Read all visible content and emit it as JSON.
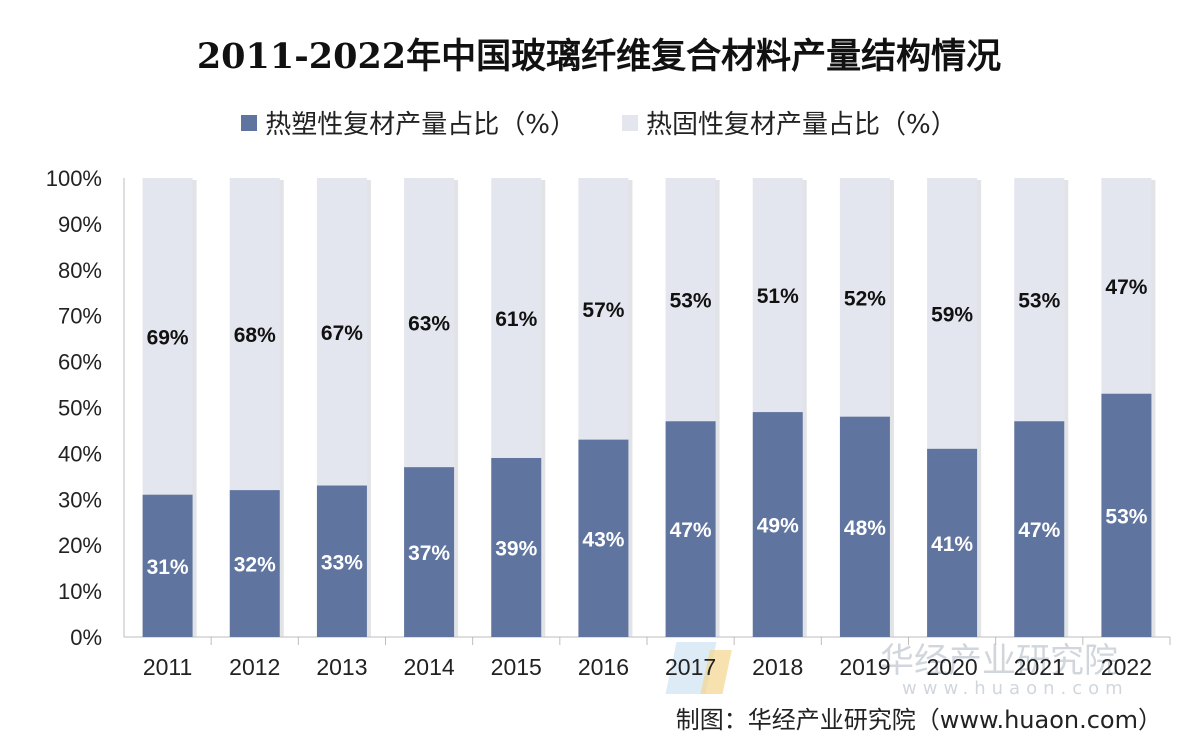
{
  "title": "2011-2022年中国玻璃纤维复合材料产量结构情况",
  "source": "制图：华经产业研究院（www.huaon.com）",
  "watermark": {
    "text": "华经产业研究院",
    "url": "www.huaon.com"
  },
  "colors": {
    "thermoplastic": "#5f749f",
    "thermoset": "#e3e6ee",
    "axis": "#bdbdbd"
  },
  "chart_data": {
    "type": "bar",
    "stacked": true,
    "categories": [
      "2011",
      "2012",
      "2013",
      "2014",
      "2015",
      "2016",
      "2017",
      "2018",
      "2019",
      "2020",
      "2021",
      "2022"
    ],
    "series": [
      {
        "name": "热塑性复材产量占比（%）",
        "values": [
          31,
          32,
          33,
          37,
          39,
          43,
          47,
          49,
          48,
          41,
          47,
          53
        ],
        "labels": [
          "31%",
          "32%",
          "33%",
          "37%",
          "39%",
          "43%",
          "47%",
          "49%",
          "48%",
          "41%",
          "47%",
          "53%"
        ]
      },
      {
        "name": "热固性复材产量占比（%）",
        "values": [
          69,
          68,
          67,
          63,
          61,
          57,
          53,
          51,
          52,
          59,
          53,
          47
        ],
        "labels": [
          "69%",
          "68%",
          "67%",
          "63%",
          "61%",
          "57%",
          "53%",
          "51%",
          "52%",
          "59%",
          "53%",
          "47%"
        ]
      }
    ],
    "yticks": [
      "0%",
      "10%",
      "20%",
      "30%",
      "40%",
      "50%",
      "60%",
      "70%",
      "80%",
      "90%",
      "100%"
    ],
    "ylim": [
      0,
      100
    ],
    "grid": false,
    "legend": "top-center"
  }
}
